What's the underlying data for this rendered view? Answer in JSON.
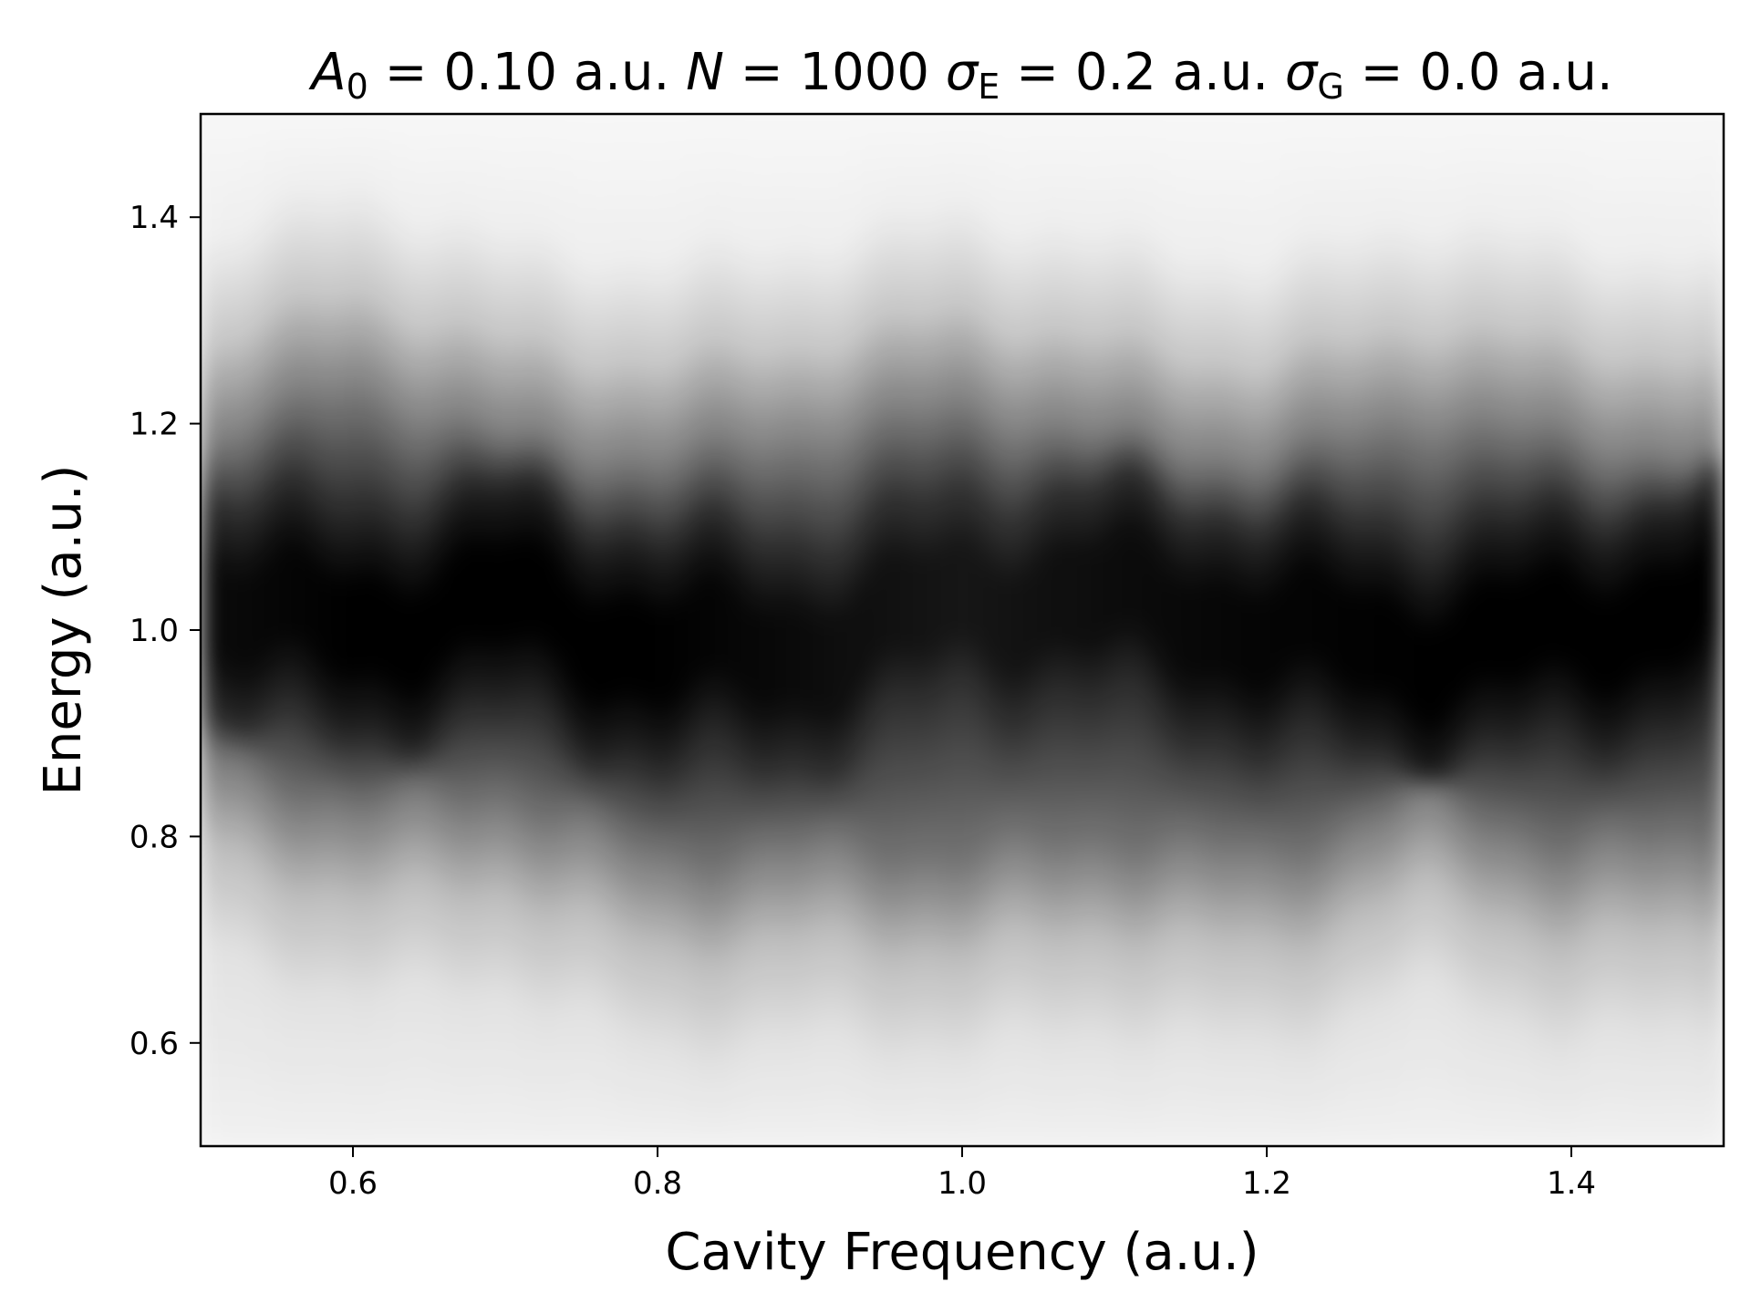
{
  "chart_data": {
    "type": "heatmap",
    "title": {
      "a_symbol": "A",
      "a_sub": "0",
      "a_value": " = 0.10 a.u.  ",
      "n_symbol": "N",
      "n_value": " = 1000  ",
      "sigma_e_symbol": "σ",
      "sigma_e_sub": "E",
      "sigma_e_value": " = 0.2 a.u.  ",
      "sigma_g_symbol": "σ",
      "sigma_g_sub": "G",
      "sigma_g_value": " = 0.0 a.u."
    },
    "xlabel": "Cavity Frequency (a.u.)",
    "ylabel": "Energy (a.u.)",
    "xlim": [
      0.5,
      1.5
    ],
    "ylim": [
      0.5,
      1.5
    ],
    "xticks": [
      0.6,
      0.8,
      1.0,
      1.2,
      1.4
    ],
    "yticks": [
      0.6,
      0.8,
      1.0,
      1.2,
      1.4
    ],
    "xtick_labels": [
      "0.6",
      "0.8",
      "1.0",
      "1.2",
      "1.4"
    ],
    "ytick_labels": [
      "0.6",
      "0.8",
      "1.0",
      "1.2",
      "1.4"
    ],
    "colormap": "Greys",
    "grid": false,
    "x_samples": [
      0.5,
      0.6,
      0.7,
      0.8,
      0.9,
      1.0,
      1.1,
      1.2,
      1.3,
      1.4,
      1.5
    ],
    "band_center_energy": [
      1.03,
      1.0,
      1.03,
      0.98,
      0.98,
      1.03,
      1.03,
      1.0,
      0.98,
      1.0,
      1.03
    ],
    "band_upper_edge_energy": [
      1.22,
      1.27,
      1.22,
      1.2,
      1.22,
      1.25,
      1.22,
      1.2,
      1.24,
      1.22,
      1.2
    ],
    "band_lower_edge_energy": [
      0.84,
      0.79,
      0.8,
      0.74,
      0.75,
      0.74,
      0.76,
      0.74,
      0.8,
      0.75,
      0.76
    ],
    "peak_intensity": [
      0.95,
      1.0,
      1.0,
      1.0,
      0.95,
      0.9,
      0.95,
      0.98,
      1.0,
      1.0,
      1.0
    ]
  }
}
